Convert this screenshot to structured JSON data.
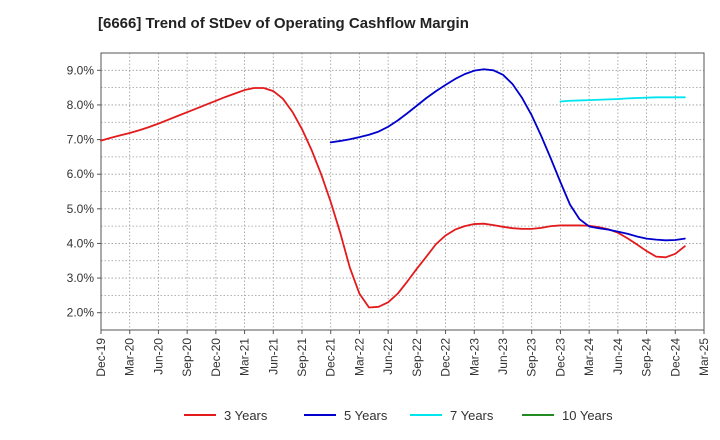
{
  "title": "[6666]  Trend of StDev of Operating Cashflow Margin",
  "chart_data": {
    "type": "line",
    "title": "[6666]  Trend of StDev of Operating Cashflow Margin",
    "xlabel": "",
    "ylabel": "",
    "x_ticks": [
      "Dec-19",
      "Mar-20",
      "Jun-20",
      "Sep-20",
      "Dec-20",
      "Mar-21",
      "Jun-21",
      "Sep-21",
      "Dec-21",
      "Mar-22",
      "Jun-22",
      "Sep-22",
      "Dec-22",
      "Mar-23",
      "Jun-23",
      "Sep-23",
      "Dec-23",
      "Mar-24",
      "Jun-24",
      "Sep-24",
      "Dec-24",
      "Mar-25"
    ],
    "y_ticks": [
      "2.0%",
      "3.0%",
      "4.0%",
      "5.0%",
      "6.0%",
      "7.0%",
      "8.0%",
      "9.0%"
    ],
    "ylim": [
      1.5,
      9.5
    ],
    "grid": true,
    "legend_position": "bottom",
    "series": [
      {
        "name": "3 Years",
        "color": "#e31a1c",
        "points": [
          [
            "Dec-19",
            6.97
          ],
          [
            "Jan-20",
            7.05
          ],
          [
            "Feb-20",
            7.12
          ],
          [
            "Mar-20",
            7.19
          ],
          [
            "Apr-20",
            7.27
          ],
          [
            "May-20",
            7.36
          ],
          [
            "Jun-20",
            7.46
          ],
          [
            "Jul-20",
            7.57
          ],
          [
            "Aug-20",
            7.68
          ],
          [
            "Sep-20",
            7.79
          ],
          [
            "Oct-20",
            7.9
          ],
          [
            "Nov-20",
            8.01
          ],
          [
            "Dec-20",
            8.12
          ],
          [
            "Jan-21",
            8.23
          ],
          [
            "Feb-21",
            8.33
          ],
          [
            "Mar-21",
            8.43
          ],
          [
            "Apr-21",
            8.49
          ],
          [
            "May-21",
            8.49
          ],
          [
            "Jun-21",
            8.4
          ],
          [
            "Jul-21",
            8.18
          ],
          [
            "Aug-21",
            7.8
          ],
          [
            "Sep-21",
            7.3
          ],
          [
            "Oct-21",
            6.7
          ],
          [
            "Nov-21",
            6.0
          ],
          [
            "Dec-21",
            5.2
          ],
          [
            "Jan-22",
            4.3
          ],
          [
            "Feb-22",
            3.3
          ],
          [
            "Mar-22",
            2.55
          ],
          [
            "Apr-22",
            2.15
          ],
          [
            "May-22",
            2.17
          ],
          [
            "Jun-22",
            2.3
          ],
          [
            "Jul-22",
            2.55
          ],
          [
            "Aug-22",
            2.9
          ],
          [
            "Sep-22",
            3.27
          ],
          [
            "Oct-22",
            3.62
          ],
          [
            "Nov-22",
            3.98
          ],
          [
            "Dec-22",
            4.23
          ],
          [
            "Jan-23",
            4.4
          ],
          [
            "Feb-23",
            4.5
          ],
          [
            "Mar-23",
            4.56
          ],
          [
            "Apr-23",
            4.57
          ],
          [
            "May-23",
            4.53
          ],
          [
            "Jun-23",
            4.48
          ],
          [
            "Jul-23",
            4.44
          ],
          [
            "Aug-23",
            4.42
          ],
          [
            "Sep-23",
            4.42
          ],
          [
            "Oct-23",
            4.45
          ],
          [
            "Nov-23",
            4.5
          ],
          [
            "Dec-23",
            4.52
          ],
          [
            "Jan-24",
            4.52
          ],
          [
            "Feb-24",
            4.52
          ],
          [
            "Mar-24",
            4.51
          ],
          [
            "Apr-24",
            4.47
          ],
          [
            "May-24",
            4.41
          ],
          [
            "Jun-24",
            4.31
          ],
          [
            "Jul-24",
            4.15
          ],
          [
            "Aug-24",
            3.97
          ],
          [
            "Sep-24",
            3.78
          ],
          [
            "Oct-24",
            3.62
          ],
          [
            "Nov-24",
            3.6
          ],
          [
            "Dec-24",
            3.7
          ],
          [
            "Jan-25",
            3.92
          ]
        ]
      },
      {
        "name": "5 Years",
        "color": "#0000cc",
        "points": [
          [
            "Dec-21",
            6.92
          ],
          [
            "Jan-22",
            6.96
          ],
          [
            "Feb-22",
            7.01
          ],
          [
            "Mar-22",
            7.07
          ],
          [
            "Apr-22",
            7.14
          ],
          [
            "May-22",
            7.23
          ],
          [
            "Jun-22",
            7.37
          ],
          [
            "Jul-22",
            7.55
          ],
          [
            "Aug-22",
            7.76
          ],
          [
            "Sep-22",
            7.98
          ],
          [
            "Oct-22",
            8.2
          ],
          [
            "Nov-22",
            8.4
          ],
          [
            "Dec-22",
            8.58
          ],
          [
            "Jan-23",
            8.75
          ],
          [
            "Feb-23",
            8.89
          ],
          [
            "Mar-23",
            8.99
          ],
          [
            "Apr-23",
            9.03
          ],
          [
            "May-23",
            9.0
          ],
          [
            "Jun-23",
            8.87
          ],
          [
            "Jul-23",
            8.6
          ],
          [
            "Aug-23",
            8.2
          ],
          [
            "Sep-23",
            7.7
          ],
          [
            "Oct-23",
            7.1
          ],
          [
            "Nov-23",
            6.45
          ],
          [
            "Dec-23",
            5.77
          ],
          [
            "Jan-24",
            5.12
          ],
          [
            "Feb-24",
            4.7
          ],
          [
            "Mar-24",
            4.49
          ],
          [
            "Apr-24",
            4.44
          ],
          [
            "May-24",
            4.4
          ],
          [
            "Jun-24",
            4.34
          ],
          [
            "Jul-24",
            4.28
          ],
          [
            "Aug-24",
            4.2
          ],
          [
            "Sep-24",
            4.14
          ],
          [
            "Oct-24",
            4.11
          ],
          [
            "Nov-24",
            4.09
          ],
          [
            "Dec-24",
            4.1
          ],
          [
            "Jan-25",
            4.14
          ]
        ]
      },
      {
        "name": "7 Years",
        "color": "#00e5ee",
        "points": [
          [
            "Dec-23",
            8.1
          ],
          [
            "Jan-24",
            8.12
          ],
          [
            "Feb-24",
            8.13
          ],
          [
            "Mar-24",
            8.14
          ],
          [
            "Apr-24",
            8.15
          ],
          [
            "May-24",
            8.16
          ],
          [
            "Jun-24",
            8.17
          ],
          [
            "Jul-24",
            8.19
          ],
          [
            "Aug-24",
            8.2
          ],
          [
            "Sep-24",
            8.21
          ],
          [
            "Oct-24",
            8.22
          ],
          [
            "Nov-24",
            8.22
          ],
          [
            "Dec-24",
            8.22
          ],
          [
            "Jan-25",
            8.22
          ]
        ]
      },
      {
        "name": "10 Years",
        "color": "#228b22",
        "points": []
      }
    ]
  }
}
